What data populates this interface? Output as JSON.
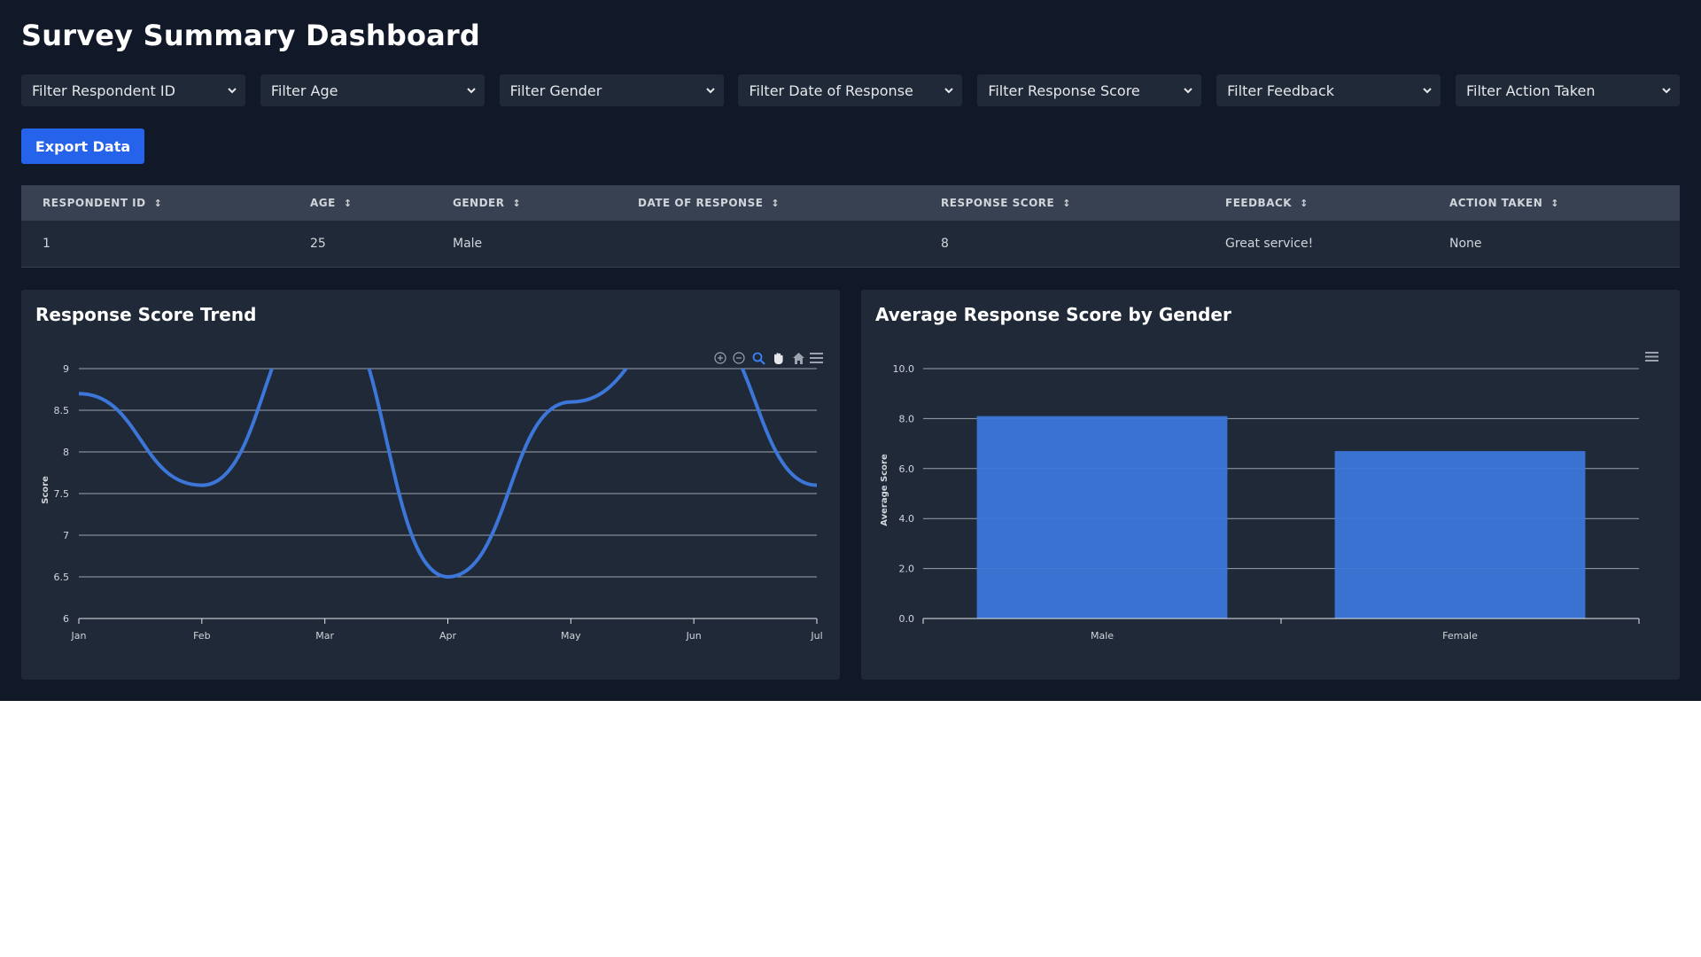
{
  "app": {
    "title": "Survey Summary Dashboard"
  },
  "filters": [
    "Filter Respondent ID",
    "Filter Age",
    "Filter Gender",
    "Filter Date of Response",
    "Filter Response Score",
    "Filter Feedback",
    "Filter Action Taken"
  ],
  "actions": {
    "export_label": "Export Data"
  },
  "table": {
    "columns": [
      "RESPONDENT ID",
      "AGE",
      "GENDER",
      "DATE OF RESPONSE",
      "RESPONSE SCORE",
      "FEEDBACK",
      "ACTION TAKEN"
    ],
    "sort_icon": "↕",
    "rows": [
      [
        "1",
        "25",
        "Male",
        "",
        "8",
        "Great service!",
        "None"
      ]
    ]
  },
  "colors": {
    "accent": "#2563eb",
    "series": "#3b76d8",
    "background": "#111827",
    "card": "#1f2937"
  },
  "toolbar_icons": [
    "zoom-in-icon",
    "zoom-out-icon",
    "zoom-selection-icon",
    "pan-icon",
    "reset-home-icon",
    "menu-icon"
  ],
  "chart_data": [
    {
      "type": "line",
      "title": "Response Score Trend",
      "ylabel": "Score",
      "xlabel": "",
      "categories": [
        "Jan",
        "Feb",
        "Mar",
        "Apr",
        "May",
        "Jun",
        "Jul"
      ],
      "y_ticks": [
        "6",
        "6.5",
        "7",
        "7.5",
        "8",
        "8.5",
        "9"
      ],
      "ylim": [
        6,
        9
      ],
      "smooth": true,
      "series": [
        {
          "values": [
            8.7,
            7.6,
            9.8,
            6.5,
            8.6,
            9.6,
            7.6
          ]
        }
      ],
      "grid": true
    },
    {
      "type": "bar",
      "title": "Average Response Score by Gender",
      "ylabel": "Average Score",
      "xlabel": "",
      "categories": [
        "Male",
        "Female"
      ],
      "values": [
        8.1,
        6.7
      ],
      "y_ticks": [
        "0.0",
        "2.0",
        "4.0",
        "6.0",
        "8.0",
        "10.0"
      ],
      "ylim": [
        0,
        10
      ],
      "grid": true
    }
  ]
}
